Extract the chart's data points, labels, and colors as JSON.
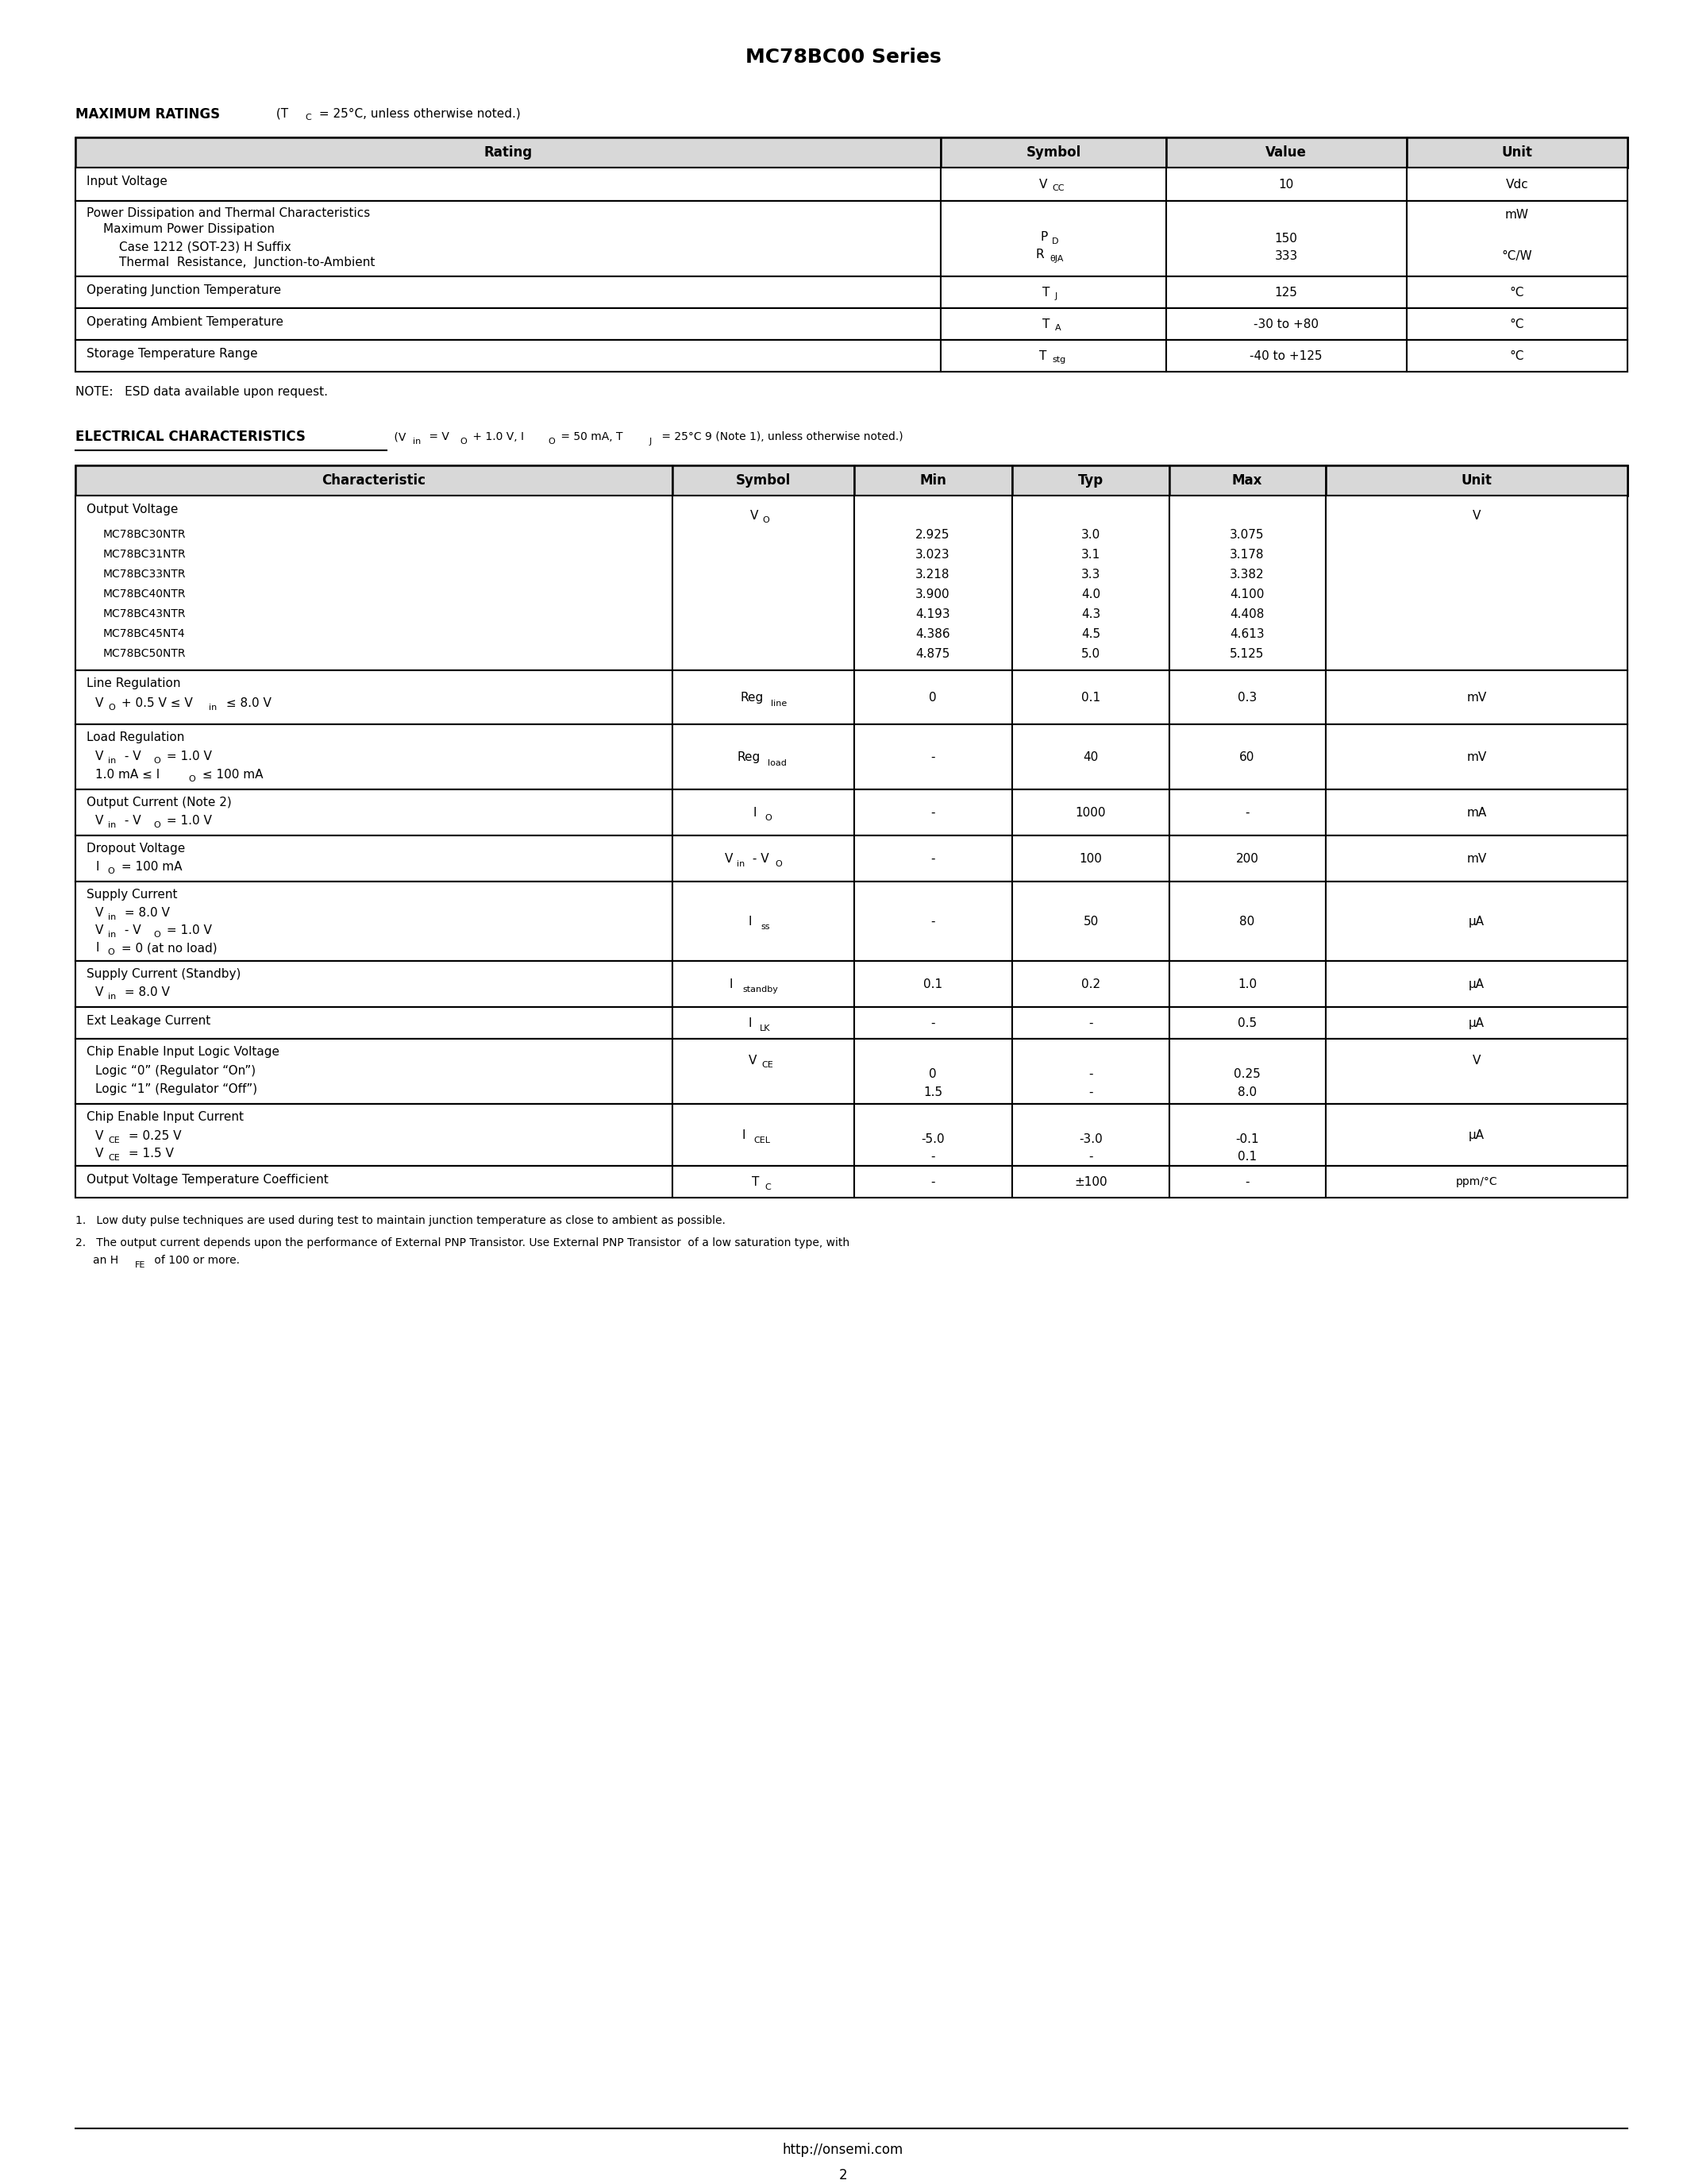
{
  "title": "MC78BC00 Series",
  "page_number": "2",
  "footer_url": "http://onsemi.com",
  "bg_color": "#ffffff",
  "max_ratings_note": "NOTE:   ESD data available upon request.",
  "parts": [
    "MC78BC30NTR",
    "MC78BC31NTR",
    "MC78BC33NTR",
    "MC78BC40NTR",
    "MC78BC43NTR",
    "MC78BC45NT4",
    "MC78BC50NTR"
  ],
  "mins_": [
    "2.925",
    "3.023",
    "3.218",
    "3.900",
    "4.193",
    "4.386",
    "4.875"
  ],
  "typs_": [
    "3.0",
    "3.1",
    "3.3",
    "4.0",
    "4.3",
    "4.5",
    "5.0"
  ],
  "maxs_": [
    "3.075",
    "3.178",
    "3.382",
    "4.100",
    "4.408",
    "4.613",
    "5.125"
  ]
}
